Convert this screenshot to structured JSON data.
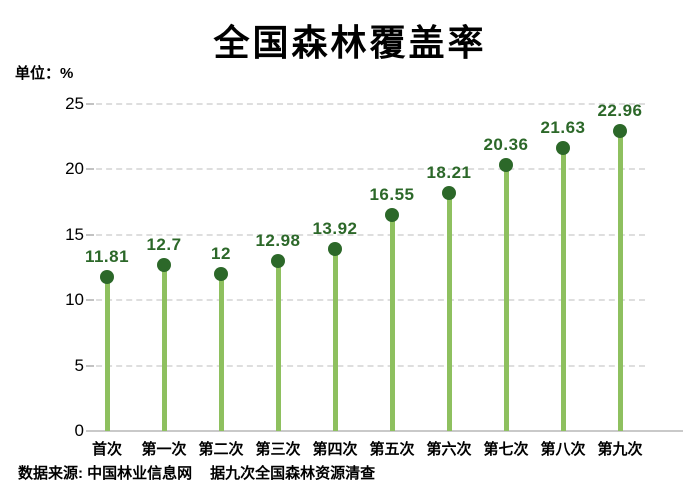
{
  "chart_data": {
    "type": "bar",
    "style": "lollipop",
    "title": "全国森林覆盖率",
    "unit_label": "单位：%",
    "categories": [
      "首次",
      "第一次",
      "第二次",
      "第三次",
      "第四次",
      "第五次",
      "第六次",
      "第七次",
      "第八次",
      "第九次"
    ],
    "values": [
      11.81,
      12.7,
      12,
      12.98,
      13.92,
      16.55,
      18.21,
      20.36,
      21.63,
      22.96
    ],
    "value_labels": [
      "11.81",
      "12.7",
      "12",
      "12.98",
      "13.92",
      "16.55",
      "18.21",
      "20.36",
      "21.63",
      "22.96"
    ],
    "yticks": [
      0,
      5,
      10,
      15,
      20,
      25
    ],
    "ylim": [
      0,
      25
    ],
    "xlabel": "",
    "ylabel": "%",
    "grid": "horizontal-dashed",
    "legend": "none",
    "colors": {
      "stem": "#8ec05f",
      "dot": "#2c6829",
      "value_label": "#2c6829",
      "gridline": "#dedede",
      "axis": "#c9c9c9",
      "text": "#000000"
    }
  },
  "footer": {
    "source": "数据来源: 中国林业信息网",
    "note": "据九次全国森林资源清查"
  }
}
